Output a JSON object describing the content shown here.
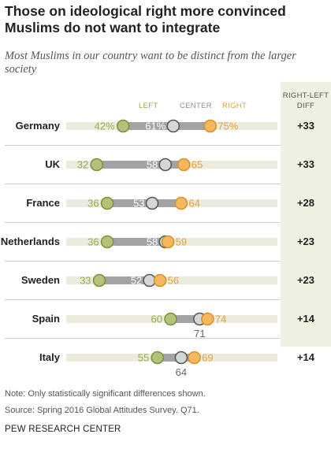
{
  "title": "Those on ideological right more convinced Muslims do not want to integrate",
  "subtitle": "Most Muslims in our country want to be distinct from the larger society",
  "chart_data": {
    "type": "dot",
    "categories": [
      "Germany",
      "UK",
      "France",
      "Netherlands",
      "Sweden",
      "Spain",
      "Italy"
    ],
    "series": [
      {
        "name": "LEFT",
        "color": "#9aab4f",
        "values": [
          42,
          32,
          36,
          36,
          33,
          60,
          55
        ]
      },
      {
        "name": "CENTER",
        "color": "#8c8c8c",
        "values": [
          61,
          58,
          53,
          58,
          52,
          71,
          64
        ]
      },
      {
        "name": "RIGHT",
        "color": "#e6a13a",
        "values": [
          75,
          65,
          64,
          59,
          56,
          74,
          69
        ]
      }
    ],
    "value_labels": [
      [
        "42%",
        "61%",
        "75%"
      ],
      [
        "32",
        "58",
        "65"
      ],
      [
        "36",
        "53",
        "64"
      ],
      [
        "36",
        "58",
        "59"
      ],
      [
        "33",
        "52",
        "56"
      ],
      [
        "60",
        "71",
        "74"
      ],
      [
        "55",
        "64",
        "69"
      ]
    ],
    "diff_header": [
      "RIGHT-LEFT",
      "DIFF"
    ],
    "diff": [
      "+33",
      "+33",
      "+28",
      "+23",
      "+23",
      "+14",
      "+14"
    ],
    "xlim": [
      0,
      100
    ]
  },
  "note": "Note: Only statistically significant differences shown.",
  "source": "Source: Spring 2016 Global Attitudes Survey. Q71.",
  "org": "PEW RESEARCH CENTER"
}
